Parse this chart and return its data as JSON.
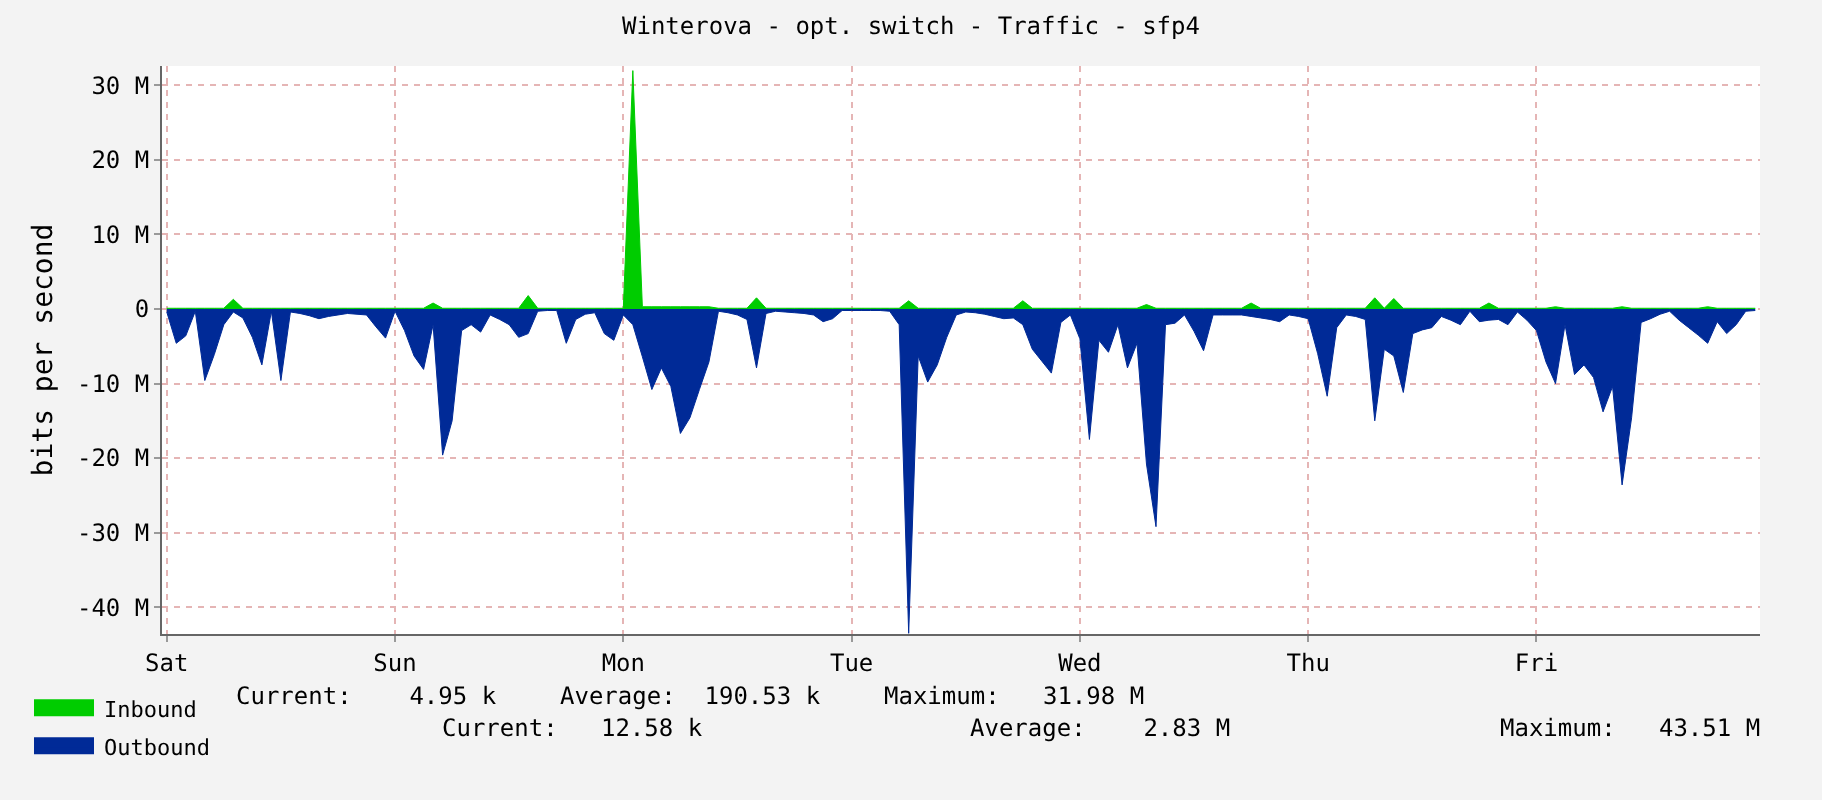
{
  "chart_data": {
    "type": "area",
    "title": "Winterova - opt. switch - Traffic - sfp4",
    "ylabel": "bits per second",
    "categories": [
      "Sat",
      null,
      null,
      null,
      null,
      null,
      null,
      null,
      null,
      null,
      null,
      null,
      null,
      null,
      null,
      null,
      null,
      null,
      null,
      null,
      null,
      null,
      null,
      null,
      "Sun",
      null,
      null,
      null,
      null,
      null,
      null,
      null,
      null,
      null,
      null,
      null,
      null,
      null,
      null,
      null,
      null,
      null,
      null,
      null,
      null,
      null,
      null,
      null,
      "Mon",
      null,
      null,
      null,
      null,
      null,
      null,
      null,
      null,
      null,
      null,
      null,
      null,
      null,
      null,
      null,
      null,
      null,
      null,
      null,
      null,
      null,
      null,
      null,
      "Tue",
      null,
      null,
      null,
      null,
      null,
      null,
      null,
      null,
      null,
      null,
      null,
      null,
      null,
      null,
      null,
      null,
      null,
      null,
      null,
      null,
      null,
      null,
      null,
      "Wed",
      null,
      null,
      null,
      null,
      null,
      null,
      null,
      null,
      null,
      null,
      null,
      null,
      null,
      null,
      null,
      null,
      null,
      null,
      null,
      null,
      null,
      null,
      null,
      "Thu",
      null,
      null,
      null,
      null,
      null,
      null,
      null,
      null,
      null,
      null,
      null,
      null,
      null,
      null,
      null,
      null,
      null,
      null,
      null,
      null,
      null,
      null,
      null,
      "Fri",
      null,
      null,
      null,
      null,
      null,
      null,
      null,
      null,
      null,
      null,
      null,
      null,
      null,
      null,
      null,
      null,
      null,
      null,
      null,
      null,
      null,
      null,
      null
    ],
    "ylim": [
      -43.6,
      32.6
    ],
    "yticks": [
      {
        "value": -40,
        "label": "-40 M"
      },
      {
        "value": -30,
        "label": "-30 M"
      },
      {
        "value": -20,
        "label": "-20 M"
      },
      {
        "value": -10,
        "label": "-10 M"
      },
      0,
      {
        "value": 10,
        "label": "10 M"
      },
      {
        "value": 20,
        "label": "20 M"
      },
      {
        "value": 30,
        "label": "30 M"
      }
    ],
    "grid": true,
    "legend": "bottom left",
    "series": [
      {
        "name": "Inbound",
        "color": "#00cc00",
        "values": [
          0.1,
          0.1,
          0.1,
          0.1,
          0.1,
          0.1,
          0.1,
          1.3,
          0.1,
          0.1,
          0.1,
          0.1,
          0.1,
          0.1,
          0.1,
          0.1,
          0.1,
          0.1,
          0.1,
          0.1,
          0.1,
          0.1,
          0.1,
          0.1,
          0.1,
          0.1,
          0.1,
          0.1,
          0.8,
          0.1,
          0.1,
          0.1,
          0.1,
          0.1,
          0.1,
          0.1,
          0.1,
          0.1,
          1.8,
          0.1,
          0.1,
          0.1,
          0.1,
          0.1,
          0.1,
          0.1,
          0.1,
          0.1,
          0.1,
          31.98,
          0.3,
          0.3,
          0.3,
          0.3,
          0.3,
          0.3,
          0.3,
          0.3,
          0.1,
          0.1,
          0.1,
          0.1,
          1.5,
          0.1,
          0.1,
          0.1,
          0.1,
          0.1,
          0.1,
          0.1,
          0.1,
          0.1,
          0.1,
          0.1,
          0.1,
          0.1,
          0.1,
          0.1,
          1.1,
          0.1,
          0.1,
          0.1,
          0.1,
          0.1,
          0.1,
          0.1,
          0.1,
          0.1,
          0.1,
          0.1,
          1.1,
          0.1,
          0.1,
          0.1,
          0.1,
          0.1,
          0.1,
          0.1,
          0.1,
          0.1,
          0.1,
          0.1,
          0.1,
          0.6,
          0.1,
          0.1,
          0.1,
          0.1,
          0.1,
          0.1,
          0.1,
          0.1,
          0.1,
          0.1,
          0.8,
          0.1,
          0.1,
          0.1,
          0.1,
          0.1,
          0.1,
          0.1,
          0.1,
          0.1,
          0.1,
          0.1,
          0.1,
          1.5,
          0.1,
          1.4,
          0.1,
          0.1,
          0.1,
          0.1,
          0.1,
          0.1,
          0.1,
          0.1,
          0.1,
          0.8,
          0.1,
          0.1,
          0.1,
          0.1,
          0.1,
          0.1,
          0.3,
          0.1,
          0.1,
          0.1,
          0.1,
          0.1,
          0.1,
          0.3,
          0.1,
          0.1,
          0.1,
          0.1,
          0.1,
          0.1,
          0.1,
          0.1,
          0.3,
          0.1,
          0.1,
          0.1,
          0.1,
          0.1
        ]
      },
      {
        "name": "Outbound",
        "color": "#002a97",
        "values": [
          -0.4,
          -4.6,
          -3.6,
          -0.3,
          -9.6,
          -6.1,
          -2.1,
          -0.4,
          -1.2,
          -3.8,
          -7.5,
          -0.3,
          -9.6,
          -0.4,
          -0.6,
          -0.9,
          -1.3,
          -1.0,
          -0.8,
          -0.6,
          -0.7,
          -0.8,
          -2.4,
          -3.9,
          -0.3,
          -2.9,
          -6.3,
          -8.1,
          -2.1,
          -19.6,
          -15.0,
          -2.9,
          -2.1,
          -3.1,
          -0.8,
          -1.4,
          -2.1,
          -3.8,
          -3.3,
          -0.3,
          -0.2,
          -0.2,
          -4.6,
          -1.4,
          -0.7,
          -0.5,
          -3.3,
          -4.2,
          -0.8,
          -2.1,
          -6.4,
          -10.8,
          -7.9,
          -10.4,
          -16.7,
          -14.6,
          -10.8,
          -7.1,
          -0.3,
          -0.5,
          -0.8,
          -1.4,
          -7.9,
          -0.6,
          -0.3,
          -0.4,
          -0.5,
          -0.6,
          -0.8,
          -1.7,
          -1.3,
          -0.2,
          -0.2,
          -0.2,
          -0.2,
          -0.2,
          -0.3,
          -2.1,
          -43.51,
          -6.3,
          -9.8,
          -7.5,
          -3.8,
          -0.8,
          -0.4,
          -0.5,
          -0.7,
          -1.0,
          -1.3,
          -1.2,
          -2.1,
          -5.4,
          -7.0,
          -8.6,
          -1.8,
          -0.8,
          -4.0,
          -17.5,
          -4.2,
          -5.8,
          -2.1,
          -7.9,
          -4.6,
          -20.8,
          -29.2,
          -2.1,
          -1.9,
          -0.8,
          -3.0,
          -5.6,
          -0.8,
          -0.8,
          -0.8,
          -0.8,
          -1.0,
          -1.2,
          -1.4,
          -1.7,
          -0.8,
          -1.0,
          -1.3,
          -6.0,
          -11.7,
          -2.5,
          -0.8,
          -1.0,
          -1.4,
          -15.0,
          -5.4,
          -6.3,
          -11.2,
          -3.3,
          -2.8,
          -2.5,
          -1.0,
          -1.5,
          -2.1,
          -0.3,
          -1.7,
          -1.5,
          -1.4,
          -2.1,
          -0.4,
          -1.5,
          -2.9,
          -7.1,
          -10.0,
          -2.1,
          -8.8,
          -7.5,
          -9.2,
          -13.8,
          -10.4,
          -23.6,
          -14.6,
          -1.8,
          -1.3,
          -0.7,
          -0.3,
          -1.5,
          -2.5,
          -3.5,
          -4.6,
          -1.7,
          -3.3,
          -2.1,
          -0.3,
          -0.2
        ]
      }
    ],
    "annotations": [
      "Current:    4.95 k",
      "Average:  190.53 k",
      "Maximum:   31.98 M",
      "Current:   12.58 k",
      "Average:    2.83 M",
      "Maximum:   43.51 M"
    ]
  }
}
